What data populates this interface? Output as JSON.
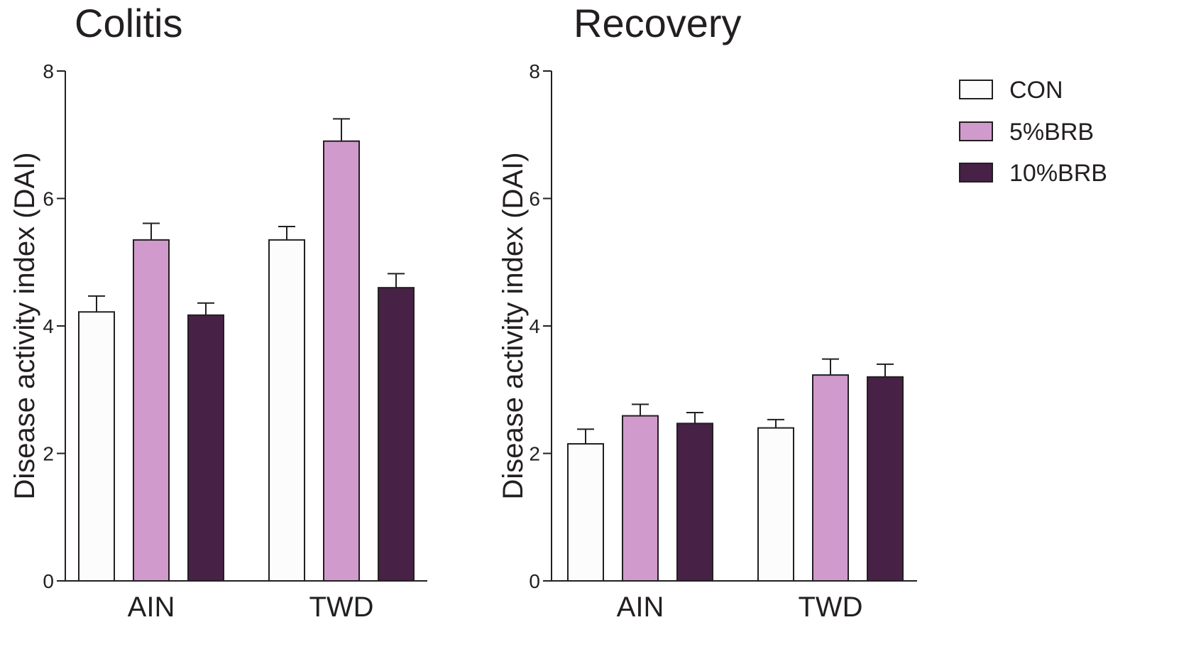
{
  "colors": {
    "CON": "#fcfcfc",
    "5%BRB": "#d09acc",
    "10%BRB": "#472146",
    "axis": "#231f20"
  },
  "legend": {
    "placement": "top-right",
    "items": [
      {
        "label": "CON",
        "color": "#fcfcfc"
      },
      {
        "label": "5%BRB",
        "color": "#d09acc"
      },
      {
        "label": "10%BRB",
        "color": "#472146"
      }
    ]
  },
  "chart_data": [
    {
      "type": "bar",
      "title": "Colitis",
      "ylabel": "Disease activity index (DAI)",
      "xlabel": "",
      "ylim": [
        0,
        8
      ],
      "yticks": [
        "0",
        "2",
        "4",
        "6",
        "8"
      ],
      "categories": [
        "AIN",
        "TWD"
      ],
      "error_bars": true,
      "grid": false,
      "series": [
        {
          "name": "CON",
          "values": [
            4.22,
            5.35
          ],
          "errors": [
            0.25,
            0.21
          ]
        },
        {
          "name": "5%BRB",
          "values": [
            5.35,
            6.9
          ],
          "errors": [
            0.26,
            0.35
          ]
        },
        {
          "name": "10%BRB",
          "values": [
            4.17,
            4.6
          ],
          "errors": [
            0.19,
            0.22
          ]
        }
      ]
    },
    {
      "type": "bar",
      "title": "Recovery",
      "ylabel": "Disease activity index (DAI)",
      "xlabel": "",
      "ylim": [
        0,
        8
      ],
      "yticks": [
        "0",
        "2",
        "4",
        "6",
        "8"
      ],
      "categories": [
        "AIN",
        "TWD"
      ],
      "error_bars": true,
      "grid": false,
      "series": [
        {
          "name": "CON",
          "values": [
            2.15,
            2.4
          ],
          "errors": [
            0.23,
            0.13
          ]
        },
        {
          "name": "5%BRB",
          "values": [
            2.59,
            3.23
          ],
          "errors": [
            0.18,
            0.25
          ]
        },
        {
          "name": "10%BRB",
          "values": [
            2.47,
            3.2
          ],
          "errors": [
            0.17,
            0.2
          ]
        }
      ]
    }
  ]
}
